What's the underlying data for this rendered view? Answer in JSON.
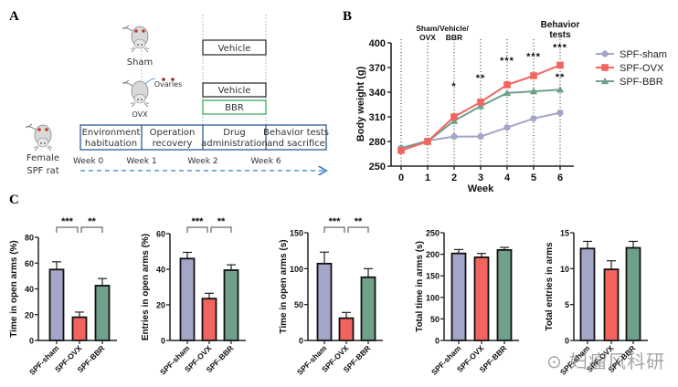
{
  "colors": {
    "sham": "#a3a5c9",
    "ovx": "#f3645f",
    "bbr": "#6fa18a",
    "timeline_border": "#2e5c94",
    "bbr_box_border": "#2ea44f",
    "guide_line": "#8fb3dc",
    "arrow": "#3a7cc7"
  },
  "panel_a": {
    "label": "A",
    "groups": {
      "sham": "Sham",
      "ovx": "OVX",
      "ovaries": "Ovaries",
      "female": "Female",
      "spf_rat": "SPF rat"
    },
    "treatments": {
      "vehicle_sham": "Vehicle",
      "vehicle_ovx": "Vehicle",
      "bbr": "BBR"
    },
    "phases": [
      {
        "line1": "Environment",
        "line2": "habituation"
      },
      {
        "line1": "Operation",
        "line2": "recovery"
      },
      {
        "line1": "Drug",
        "line2": "administration"
      },
      {
        "line1": "Behavior tests",
        "line2": "and sacrifice"
      }
    ],
    "weeks": [
      "Week 0",
      "Week 1",
      "Week 2",
      "Week 6"
    ]
  },
  "chart_data": [
    {
      "id": "B",
      "panel_label": "B",
      "type": "line",
      "title": "",
      "xlabel": "Week",
      "ylabel": "Body weight (g)",
      "x": [
        0,
        1,
        2,
        3,
        4,
        5,
        6
      ],
      "ylim": [
        250,
        400
      ],
      "yticks": [
        250,
        280,
        310,
        340,
        370,
        400
      ],
      "series": [
        {
          "name": "SPF-sham",
          "key": "sham",
          "marker": "circle",
          "values": [
            272,
            281,
            286,
            286,
            297,
            308,
            315
          ]
        },
        {
          "name": "SPF-OVX",
          "key": "ovx",
          "marker": "square",
          "values": [
            269,
            280,
            310,
            328,
            349,
            360,
            373
          ]
        },
        {
          "name": "SPF-BBR",
          "key": "bbr",
          "marker": "triangle",
          "values": [
            272,
            280,
            305,
            323,
            339,
            341,
            343
          ]
        }
      ],
      "legend_position": "right",
      "event_annotations": [
        {
          "x": 1,
          "line1": "Sham/",
          "line2": "OVX"
        },
        {
          "x": 2,
          "line1": "Vehicle/",
          "line2": "BBR"
        },
        {
          "x": 6,
          "line1": "Behavior",
          "line2": "tests"
        }
      ],
      "significance": [
        {
          "x": 2,
          "label": "*",
          "y": 348
        },
        {
          "x": 3,
          "label": "**",
          "y": 358
        },
        {
          "x": 4,
          "label": "***",
          "y": 379
        },
        {
          "x": 5,
          "label": "***",
          "y": 384
        },
        {
          "x": 6,
          "label": "***",
          "y": 395
        },
        {
          "x": 6,
          "label": "**",
          "y": 359
        }
      ]
    },
    {
      "id": "C1",
      "panel_label": "C",
      "type": "bar",
      "ylabel": "Time in open arms (%)",
      "categories": [
        "SPF-sham",
        "SPF-OVX",
        "SPF-BBR"
      ],
      "values": [
        55,
        18,
        42.5
      ],
      "errors": [
        6,
        4,
        5.5
      ],
      "ylim": [
        0,
        80
      ],
      "yticks": [
        0,
        20,
        40,
        60,
        80
      ],
      "significance": [
        {
          "from": 0,
          "to": 1,
          "label": "***"
        },
        {
          "from": 1,
          "to": 2,
          "label": "**"
        }
      ]
    },
    {
      "id": "C2",
      "type": "bar",
      "ylabel": "Entries in open arms (%)",
      "categories": [
        "SPF-sham",
        "SPF-OVX",
        "SPF-BBR"
      ],
      "values": [
        46,
        23.5,
        39.5
      ],
      "errors": [
        3.5,
        3,
        3
      ],
      "ylim": [
        0,
        60
      ],
      "yticks": [
        0,
        20,
        40,
        60
      ],
      "significance": [
        {
          "from": 0,
          "to": 1,
          "label": "***"
        },
        {
          "from": 1,
          "to": 2,
          "label": "**"
        }
      ]
    },
    {
      "id": "C3",
      "type": "bar",
      "ylabel": "Time in open arms (s)",
      "categories": [
        "SPF-sham",
        "SPF-OVX",
        "SPF-BBR"
      ],
      "values": [
        107,
        31,
        88
      ],
      "errors": [
        16,
        8,
        12
      ],
      "ylim": [
        0,
        150
      ],
      "yticks": [
        0,
        50,
        100,
        150
      ],
      "significance": [
        {
          "from": 0,
          "to": 1,
          "label": "***"
        },
        {
          "from": 1,
          "to": 2,
          "label": "**"
        }
      ]
    },
    {
      "id": "C4",
      "type": "bar",
      "ylabel": "Total time in arms (s)",
      "categories": [
        "SPF-sham",
        "SPF-OVX",
        "SPF-BBR"
      ],
      "values": [
        202,
        193,
        210
      ],
      "errors": [
        9,
        9,
        6
      ],
      "ylim": [
        0,
        250
      ],
      "yticks": [
        0,
        50,
        100,
        150,
        200,
        250
      ],
      "significance": []
    },
    {
      "id": "C5",
      "type": "bar",
      "ylabel": "Total entries in arms",
      "categories": [
        "SPF-sham",
        "SPF-OVX",
        "SPF-BBR"
      ],
      "values": [
        12.8,
        9.9,
        12.9
      ],
      "errors": [
        1.0,
        1.2,
        0.9
      ],
      "ylim": [
        0,
        15
      ],
      "yticks": [
        0,
        5,
        10,
        15
      ],
      "significance": []
    }
  ],
  "watermark": "⊙ 妇瘤风科研"
}
